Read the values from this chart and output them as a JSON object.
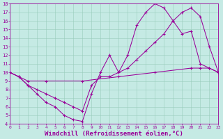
{
  "background_color": "#c5eae4",
  "grid_color": "#99ccbb",
  "line_color": "#990099",
  "xlim": [
    0,
    23
  ],
  "ylim": [
    4,
    18
  ],
  "xlabel": "Windchill (Refroidissement éolien,°C)",
  "xlabel_fontsize": 6.5,
  "xtick_vals": [
    0,
    1,
    2,
    3,
    4,
    5,
    6,
    7,
    8,
    9,
    10,
    11,
    12,
    13,
    14,
    15,
    16,
    17,
    18,
    19,
    20,
    21,
    22,
    23
  ],
  "ytick_vals": [
    4,
    5,
    6,
    7,
    8,
    9,
    10,
    11,
    12,
    13,
    14,
    15,
    16,
    17,
    18
  ],
  "curve1_x": [
    0,
    1,
    2,
    3,
    4,
    5,
    6,
    7,
    8,
    9,
    10,
    11,
    12,
    13,
    14,
    15,
    16,
    17,
    18,
    19,
    20,
    21,
    22,
    23
  ],
  "curve1_y": [
    10,
    9.5,
    8.5,
    7.5,
    6.5,
    6.0,
    5.0,
    4.5,
    4.3,
    7.5,
    10.0,
    12.0,
    10.0,
    12.0,
    15.5,
    17.0,
    18.0,
    17.5,
    16.0,
    14.5,
    14.8,
    11.0,
    10.5,
    10.0
  ],
  "curve2_x": [
    0,
    1,
    2,
    3,
    4,
    5,
    6,
    7,
    8,
    9,
    10,
    11,
    12,
    13,
    14,
    15,
    16,
    17,
    18,
    19,
    20,
    21,
    22,
    23
  ],
  "curve2_y": [
    10,
    9.5,
    8.5,
    8.0,
    7.5,
    7.0,
    6.5,
    6.0,
    5.5,
    8.5,
    9.5,
    9.5,
    10.0,
    10.5,
    11.5,
    12.5,
    13.5,
    14.5,
    16.0,
    17.0,
    17.5,
    16.5,
    13.0,
    10.0
  ],
  "curve3_x": [
    0,
    1,
    2,
    4,
    8,
    12,
    16,
    20,
    21,
    22,
    23
  ],
  "curve3_y": [
    10,
    9.5,
    9.0,
    9.0,
    9.0,
    9.5,
    10.0,
    10.5,
    10.5,
    10.5,
    10.0
  ]
}
